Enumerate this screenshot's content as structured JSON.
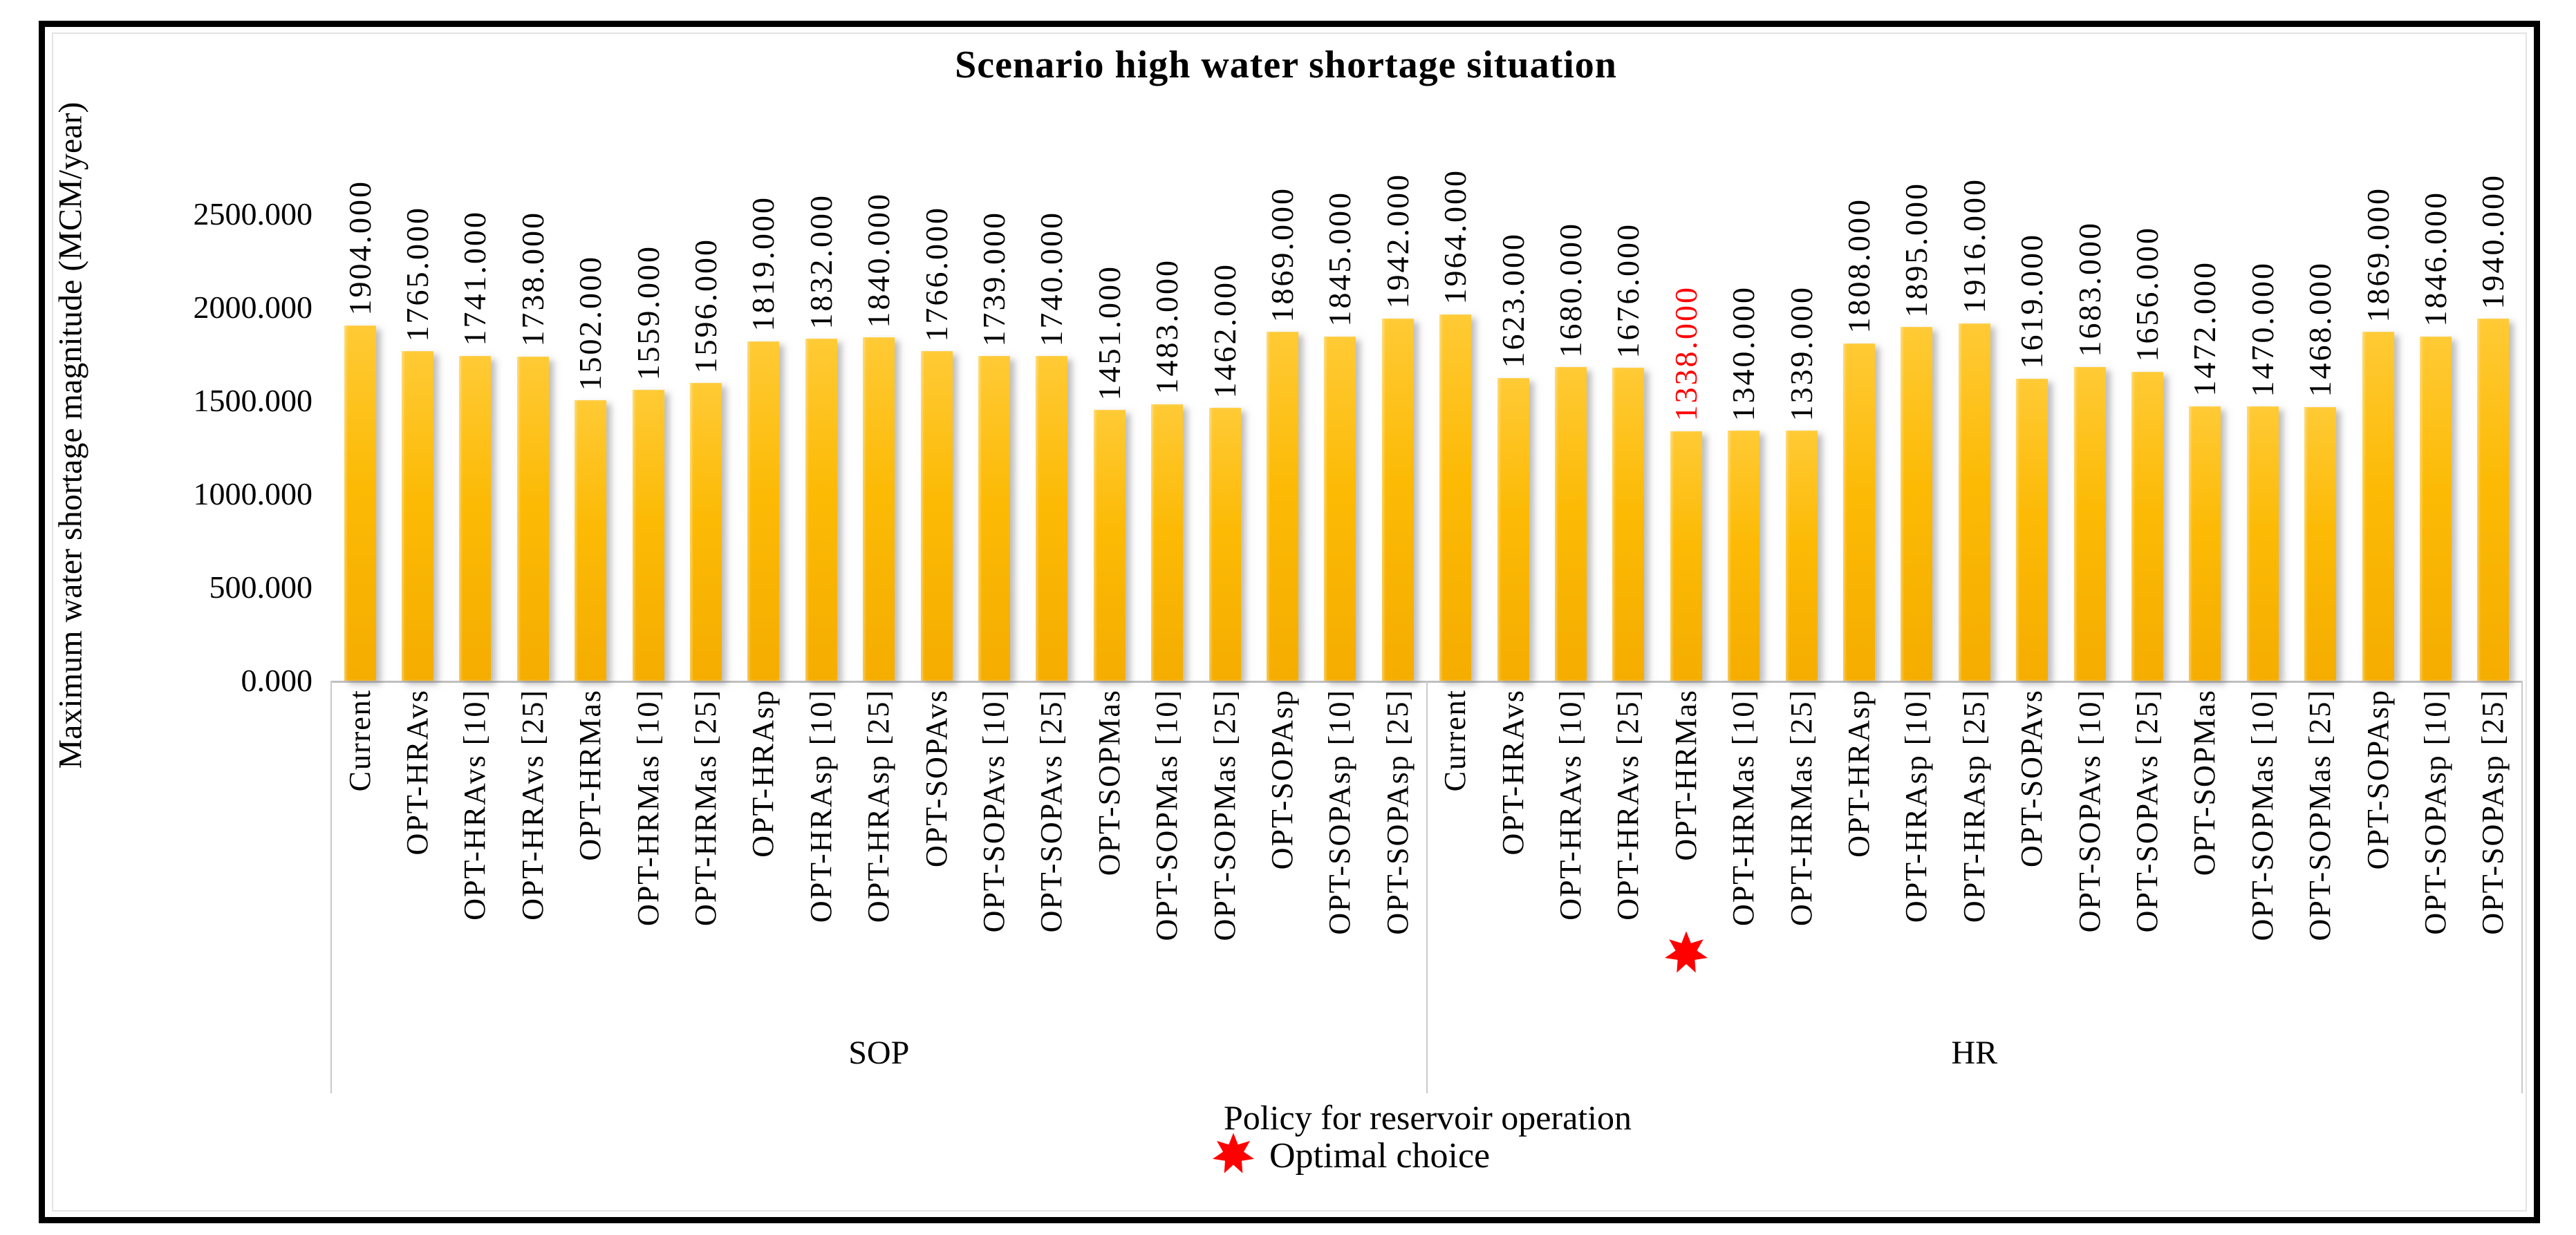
{
  "figure": {
    "title": "Scenario high water shortage situation",
    "y_axis_title": "Maximum water shortage magnitude (MCM/year)",
    "x_axis_title": "Policy for reservoir operation",
    "legend": {
      "marker": "red-7-point-star",
      "marker_color": "#FF0000",
      "label": "Optimal choice"
    }
  },
  "chart_data": {
    "type": "bar",
    "title": "Scenario high water shortage situation",
    "xlabel": "Policy for reservoir operation",
    "ylabel": "Maximum water shortage magnitude (MCM/year)",
    "ylim": [
      0,
      2500
    ],
    "y_ticks": [
      {
        "label": "2500.000",
        "value": 2500
      },
      {
        "label": "2000.000",
        "value": 2000
      },
      {
        "label": "1500.000",
        "value": 1500
      },
      {
        "label": "1000.000",
        "value": 1000
      },
      {
        "label": "500.000",
        "value": 500
      },
      {
        "label": "0.000",
        "value": 0
      }
    ],
    "grid": false,
    "legend_position": "bottom-center",
    "bar_color": "#FBBA0C",
    "optimal_color": "#FF0000",
    "value_label_format": "3-decimals",
    "groups": [
      {
        "name": "SOP",
        "categories": [
          "Current",
          "OPT-HRAvs",
          "OPT-HRAvs [10]",
          "OPT-HRAvs [25]",
          "OPT-HRMas",
          "OPT-HRMas [10]",
          "OPT-HRMas [25]",
          "OPT-HRAsp",
          "OPT-HRAsp [10]",
          "OPT-HRAsp [25]",
          "OPT-SOPAvs",
          "OPT-SOPAvs [10]",
          "OPT-SOPAvs [25]",
          "OPT-SOPMas",
          "OPT-SOPMas [10]",
          "OPT-SOPMas [25]",
          "OPT-SOPAsp",
          "OPT-SOPAsp [10]",
          "OPT-SOPAsp [25]"
        ],
        "values": [
          1904,
          1765,
          1741,
          1738,
          1502,
          1559,
          1596,
          1819,
          1832,
          1840,
          1766,
          1739,
          1740,
          1451,
          1483,
          1462,
          1869,
          1845,
          1942
        ],
        "optimal_index": null
      },
      {
        "name": "HR",
        "categories": [
          "Current",
          "OPT-HRAvs",
          "OPT-HRAvs [10]",
          "OPT-HRAvs [25]",
          "OPT-HRMas",
          "OPT-HRMas [10]",
          "OPT-HRMas [25]",
          "OPT-HRAsp",
          "OPT-HRAsp [10]",
          "OPT-HRAsp [25]",
          "OPT-SOPAvs",
          "OPT-SOPAvs [10]",
          "OPT-SOPAvs [25]",
          "OPT-SOPMas",
          "OPT-SOPMas [10]",
          "OPT-SOPMas [25]",
          "OPT-SOPAsp",
          "OPT-SOPAsp [10]",
          "OPT-SOPAsp [25]"
        ],
        "values": [
          1964,
          1623,
          1680,
          1676,
          1338,
          1340,
          1339,
          1808,
          1895,
          1916,
          1619,
          1683,
          1656,
          1472,
          1470,
          1468,
          1869,
          1846,
          1940
        ],
        "optimal_index": 4
      }
    ]
  }
}
